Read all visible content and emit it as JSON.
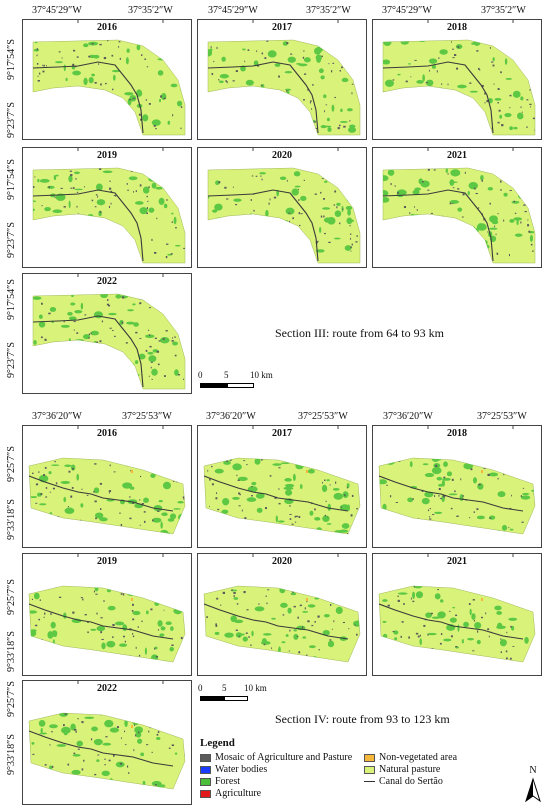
{
  "sections": [
    {
      "id": "section-iii",
      "title": "Section III: route from 64 to 93 km",
      "lon_labels": [
        "37°45′29″W",
        "37°35′2″W"
      ],
      "lat_labels": [
        "9°17′54″S",
        "9°23′7″S"
      ],
      "years": [
        "2016",
        "2017",
        "2018",
        "2019",
        "2020",
        "2021",
        "2022"
      ],
      "scale": {
        "labels": [
          "0",
          "5",
          "10 km"
        ]
      }
    },
    {
      "id": "section-iv",
      "title": "Section IV: route from 93 to 123 km",
      "lon_labels": [
        "37°36′20″W",
        "37°25′53″W"
      ],
      "lat_labels": [
        "9°25′7″S",
        "9°33′18″S"
      ],
      "years": [
        "2016",
        "2017",
        "2018",
        "2019",
        "2020",
        "2021",
        "2022"
      ],
      "scale": {
        "labels": [
          "0",
          "5",
          "10 km"
        ]
      }
    }
  ],
  "legend": {
    "title": "Legend",
    "items": [
      {
        "label": "Mosaic of Agriculture and Pasture",
        "color": "#5a5a5a",
        "kind": "fill"
      },
      {
        "label": "Water bodies",
        "color": "#1a3cff",
        "kind": "fill"
      },
      {
        "label": "Forest",
        "color": "#4cbf3a",
        "kind": "fill"
      },
      {
        "label": "Agriculture",
        "color": "#e31a1c",
        "kind": "fill"
      },
      {
        "label": "Non-vegetated area",
        "color": "#f5b83a",
        "kind": "fill"
      },
      {
        "label": "Natural pasture",
        "color": "#d9f27a",
        "kind": "fill"
      },
      {
        "label": "Canal do Sertão",
        "color": "#333333",
        "kind": "line"
      }
    ]
  },
  "north_arrow": {
    "label": "N",
    "icon": "north-arrow-icon"
  },
  "colors": {
    "pasture": "#d9f27a",
    "forest": "#5cc843",
    "mosaic": "#5a5a5a",
    "canal": "#3a3a3a",
    "nonveg": "#f5b83a"
  }
}
